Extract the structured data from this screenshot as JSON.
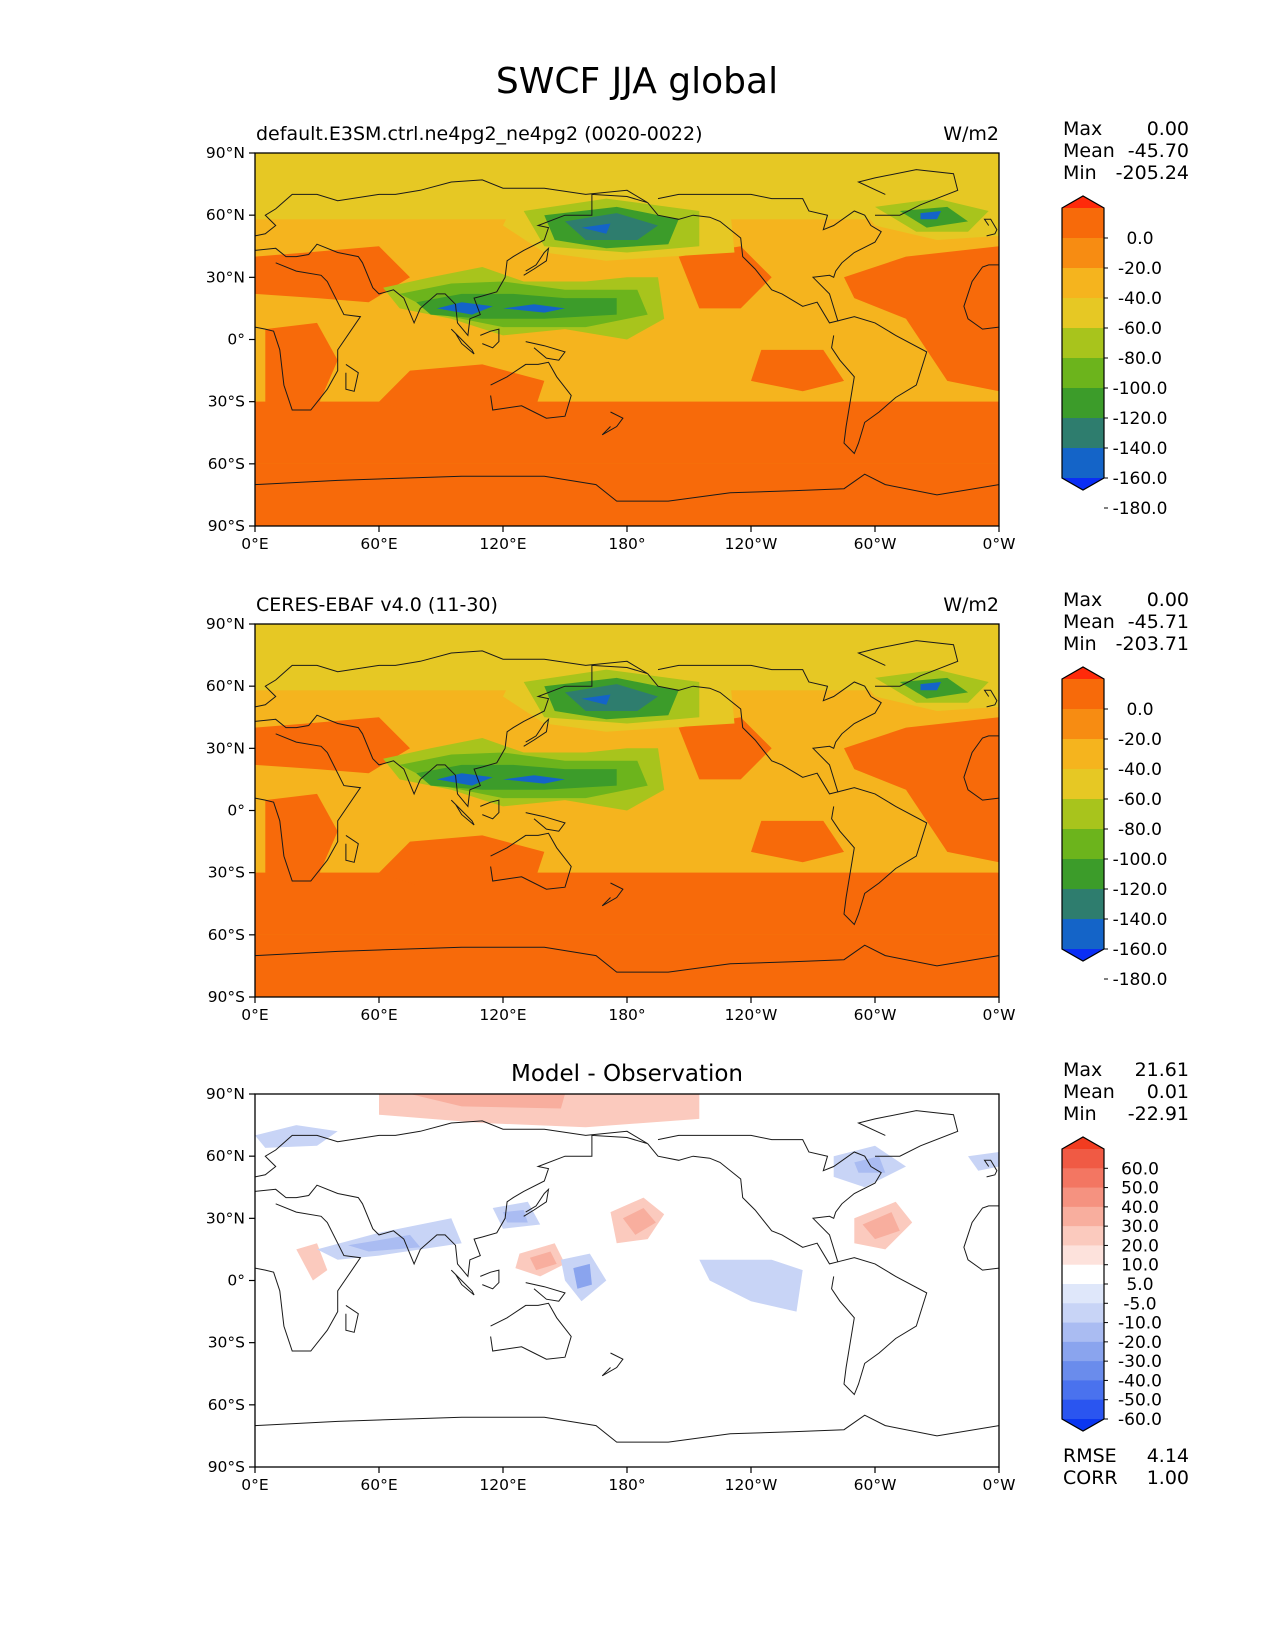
{
  "figure": {
    "title": "SWCF JJA global"
  },
  "axes": {
    "lat_ticks": [
      "90°N",
      "60°N",
      "30°N",
      "0°",
      "30°S",
      "60°S",
      "90°S"
    ],
    "lon_ticks": [
      "0°E",
      "60°E",
      "120°E",
      "180°",
      "120°W",
      "60°W",
      "0°W"
    ]
  },
  "colors": {
    "field_levels": [
      "#0a2ef5",
      "#1464c8",
      "#2e7d6e",
      "#3c9c2a",
      "#6cb41c",
      "#a8c41c",
      "#e6c824",
      "#f5b41e",
      "#f78c12",
      "#f76a0a",
      "#ff2a0a"
    ],
    "diff_levels": [
      "#0a36f0",
      "#2a55f0",
      "#4a72ee",
      "#6a8cec",
      "#8aa4ee",
      "#aabcf2",
      "#c8d4f6",
      "#dfe7fa",
      "#ffffff",
      "#fde2dc",
      "#fbcabe",
      "#f8ae9e",
      "#f59280",
      "#f37662",
      "#f05a44",
      "#f23c20"
    ]
  },
  "chart_data": [
    {
      "type": "heatmap",
      "name": "model",
      "title": "default.E3SM.ctrl.ne4pg2_ne4pg2 (0020-0022)",
      "units": "W/m2",
      "stats": {
        "max_label": "Max",
        "max_value": "0.00",
        "mean_label": "Mean",
        "mean_value": "-45.70",
        "min_label": "Min",
        "min_value": "-205.24"
      },
      "colorbar_ticks": [
        "0.0",
        "-20.0",
        "-40.0",
        "-60.0",
        "-80.0",
        "-100.0",
        "-120.0",
        "-140.0",
        "-160.0",
        "-180.0"
      ],
      "xlim": [
        0,
        360
      ],
      "ylim": [
        -90,
        90
      ]
    },
    {
      "type": "heatmap",
      "name": "observation",
      "title": "CERES-EBAF v4.0 (11-30)",
      "units": "W/m2",
      "stats": {
        "max_label": "Max",
        "max_value": "0.00",
        "mean_label": "Mean",
        "mean_value": "-45.71",
        "min_label": "Min",
        "min_value": "-203.71"
      },
      "colorbar_ticks": [
        "0.0",
        "-20.0",
        "-40.0",
        "-60.0",
        "-80.0",
        "-100.0",
        "-120.0",
        "-140.0",
        "-160.0",
        "-180.0"
      ],
      "xlim": [
        0,
        360
      ],
      "ylim": [
        -90,
        90
      ]
    },
    {
      "type": "heatmap",
      "name": "difference",
      "title": "Model - Observation",
      "stats": {
        "max_label": "Max",
        "max_value": "21.61",
        "mean_label": "Mean",
        "mean_value": "0.01",
        "min_label": "Min",
        "min_value": "-22.91",
        "rmse_label": "RMSE",
        "rmse_value": "4.14",
        "corr_label": "CORR",
        "corr_value": "1.00"
      },
      "colorbar_ticks": [
        "60.0",
        "50.0",
        "40.0",
        "30.0",
        "20.0",
        "10.0",
        "5.0",
        "-5.0",
        "-10.0",
        "-20.0",
        "-30.0",
        "-40.0",
        "-50.0",
        "-60.0"
      ],
      "xlim": [
        0,
        360
      ],
      "ylim": [
        -90,
        90
      ]
    }
  ]
}
